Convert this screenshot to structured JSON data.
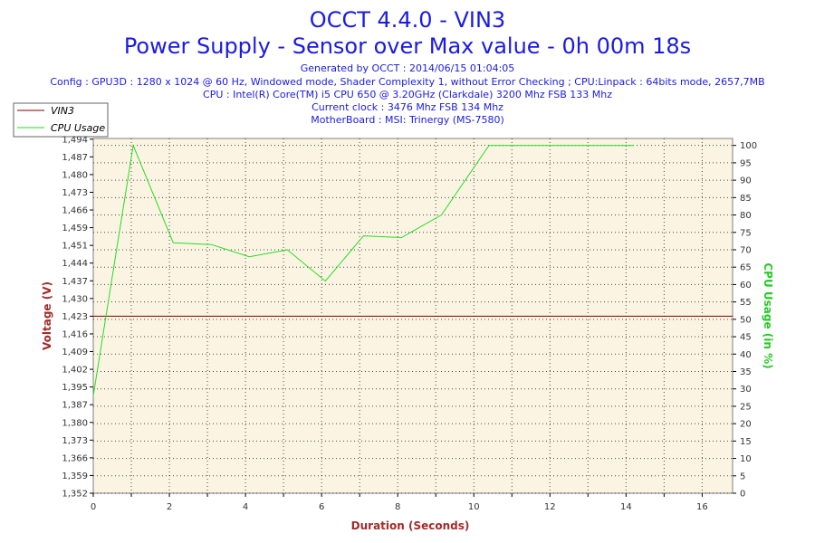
{
  "chart_data": {
    "type": "line",
    "title": "OCCT 4.4.0 - VIN3",
    "subtitle": "Power Supply - Sensor over Max value - 0h 00m 18s",
    "info_lines": [
      "Generated by OCCT : 2014/06/15 01:04:05",
      "Config : GPU3D : 1280 x 1024 @ 60 Hz, Windowed mode, Shader Complexity 1, without Error Checking ; CPU:Linpack : 64bits mode, 2657,7MB",
      "CPU : Intel(R) Core(TM) i5 CPU 650 @ 3.20GHz (Clarkdale) 3200 Mhz FSB 133 Mhz",
      "Current clock : 3476 Mhz FSB 134 Mhz",
      "MotherBoard : MSI: Trinergy (MS-7580)"
    ],
    "xlabel": "Duration (Seconds)",
    "ylabel_left": "Voltage (V)",
    "ylabel_right": "CPU Usage (in %)",
    "xlim": [
      0,
      16.8
    ],
    "ylim_left": [
      1.352,
      1.4935
    ],
    "ylim_right": [
      0,
      102
    ],
    "x_ticks": [
      "0",
      "2",
      "4",
      "6",
      "8",
      "10",
      "12",
      "14",
      "16"
    ],
    "y_left_ticks": [
      "1,352",
      "1,359",
      "1,366",
      "1,373",
      "1,380",
      "1,387",
      "1,395",
      "1,402",
      "1,409",
      "1,416",
      "1,423",
      "1,430",
      "1,437",
      "1,444",
      "1,451",
      "1,459",
      "1,466",
      "1,473",
      "1,480",
      "1,487",
      "1,494"
    ],
    "y_right_ticks": [
      "0",
      "5",
      "10",
      "15",
      "20",
      "25",
      "30",
      "35",
      "40",
      "45",
      "50",
      "55",
      "60",
      "65",
      "70",
      "75",
      "80",
      "85",
      "90",
      "95",
      "100"
    ],
    "grid": true,
    "legend": "top-left",
    "colors": {
      "vin3": "#800000",
      "cpu": "#22dd22",
      "plot_bg": "#fcf4e3",
      "title": "#1a1ae6"
    },
    "series": [
      {
        "name": "VIN3",
        "axis": "left",
        "x": [
          0,
          16.8
        ],
        "values": [
          1.4226,
          1.4226
        ]
      },
      {
        "name": "CPU Usage",
        "axis": "right",
        "x": [
          0,
          1.05,
          2.1,
          3.1,
          4.1,
          5.1,
          6.1,
          7.1,
          8.1,
          9.15,
          10.4,
          14.2
        ],
        "values": [
          28,
          100,
          72,
          71.5,
          68,
          70,
          61,
          74,
          73.5,
          80,
          100,
          100
        ]
      }
    ]
  }
}
